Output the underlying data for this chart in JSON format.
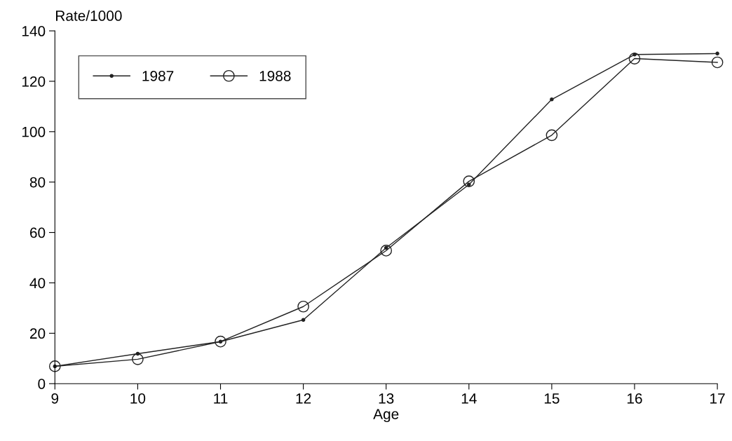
{
  "chart_data": {
    "type": "line",
    "xlabel": "Age",
    "ylabel": "Rate/1000",
    "x": [
      9,
      10,
      11,
      12,
      13,
      14,
      15,
      16,
      17
    ],
    "series": [
      {
        "name": "1987",
        "color": "#222222",
        "marker": "circle",
        "values": [
          6.9,
          11.9,
          16.7,
          25.3,
          53.9,
          79,
          112.8,
          130.6,
          131
        ]
      },
      {
        "name": "1988",
        "color": "#222222",
        "marker": "open circle",
        "values": [
          6.9,
          9.7,
          16.7,
          30.6,
          52.8,
          80.3,
          98.6,
          129,
          127.5
        ]
      }
    ],
    "xlim": [
      9,
      17
    ],
    "xticks": [
      9,
      10,
      11,
      12,
      13,
      14,
      15,
      16,
      17
    ],
    "ylim": [
      0,
      140
    ],
    "yticks": [
      0,
      20,
      40,
      60,
      80,
      100,
      120,
      140
    ],
    "legend": "top left",
    "grid": false,
    "line_style": "solid"
  }
}
